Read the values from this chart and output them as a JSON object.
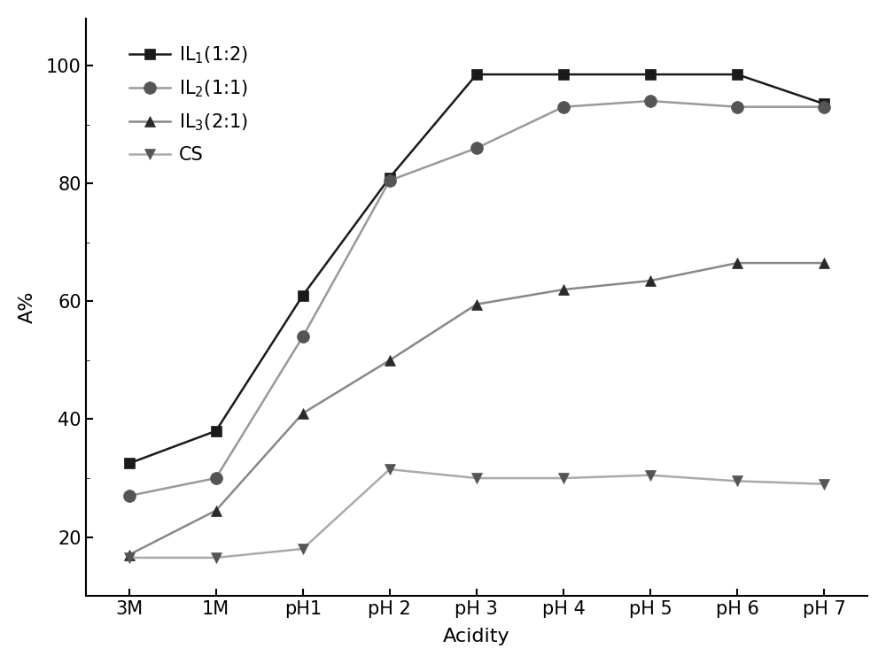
{
  "x_labels": [
    "3M",
    "1M",
    "pH1",
    "pH 2",
    "pH 3",
    "pH 4",
    "pH 5",
    "pH 6",
    "pH 7"
  ],
  "series": [
    {
      "label": "IL$_1$(1:2)",
      "line_color": "#1a1a1a",
      "marker_color": "#1a1a1a",
      "marker": "s",
      "markersize": 8,
      "linewidth": 1.8,
      "y": [
        32.5,
        38.0,
        61.0,
        81.0,
        98.5,
        98.5,
        98.5,
        98.5,
        93.5
      ]
    },
    {
      "label": "IL$_2$(1:1)",
      "line_color": "#999999",
      "marker_color": "#555555",
      "marker": "o",
      "markersize": 10,
      "linewidth": 1.8,
      "y": [
        27.0,
        30.0,
        54.0,
        80.5,
        86.0,
        93.0,
        94.0,
        93.0,
        93.0
      ]
    },
    {
      "label": "IL$_3$(2:1)",
      "line_color": "#888888",
      "marker_color": "#2a2a2a",
      "marker": "^",
      "markersize": 9,
      "linewidth": 1.8,
      "y": [
        17.0,
        24.5,
        41.0,
        50.0,
        59.5,
        62.0,
        63.5,
        66.5,
        66.5
      ]
    },
    {
      "label": "CS",
      "line_color": "#aaaaaa",
      "marker_color": "#555555",
      "marker": "v",
      "markersize": 9,
      "linewidth": 1.8,
      "y": [
        16.5,
        16.5,
        18.0,
        31.5,
        30.0,
        30.0,
        30.5,
        29.5,
        29.0
      ]
    }
  ],
  "ylabel": "A%",
  "xlabel": "Acidity",
  "ylim": [
    10,
    108
  ],
  "yticks": [
    20,
    40,
    60,
    80,
    100
  ],
  "figsize": [
    10.0,
    7.5
  ],
  "dpi": 100
}
